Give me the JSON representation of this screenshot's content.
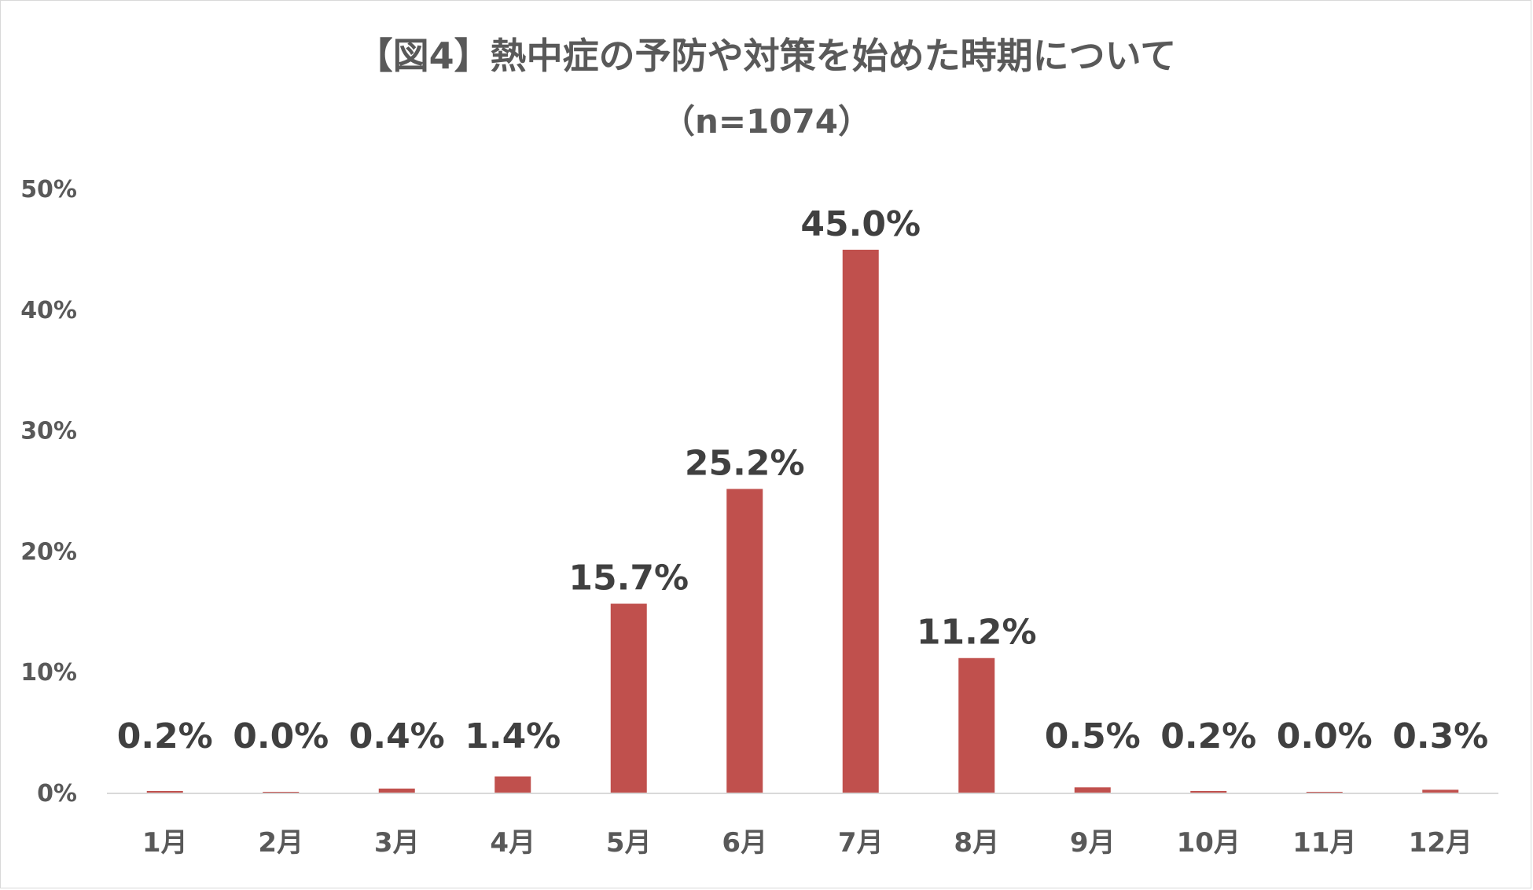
{
  "chart_data": {
    "type": "bar",
    "title": "【図4】熱中症の予防や対策を始めた時期について",
    "subtitle": "（n=1074）",
    "categories": [
      "1月",
      "2月",
      "3月",
      "4月",
      "5月",
      "6月",
      "7月",
      "8月",
      "9月",
      "10月",
      "11月",
      "12月"
    ],
    "values": [
      0.2,
      0.0,
      0.4,
      1.4,
      15.7,
      25.2,
      45.0,
      11.2,
      0.5,
      0.2,
      0.0,
      0.3
    ],
    "data_labels": [
      "0.2%",
      "0.0%",
      "0.4%",
      "1.4%",
      "15.7%",
      "25.2%",
      "45.0%",
      "11.2%",
      "0.5%",
      "0.2%",
      "0.0%",
      "0.3%"
    ],
    "y_ticks": [
      0,
      10,
      20,
      30,
      40,
      50
    ],
    "y_tick_labels": [
      "0%",
      "10%",
      "20%",
      "30%",
      "40%",
      "50%"
    ],
    "ylim": [
      0,
      50
    ],
    "xlabel": "",
    "ylabel": "",
    "grid": false,
    "legend": "none",
    "bar_color": "#C0504D",
    "axis_color": "#d9d9d9",
    "text_color": "#595959",
    "label_color": "#404040"
  }
}
